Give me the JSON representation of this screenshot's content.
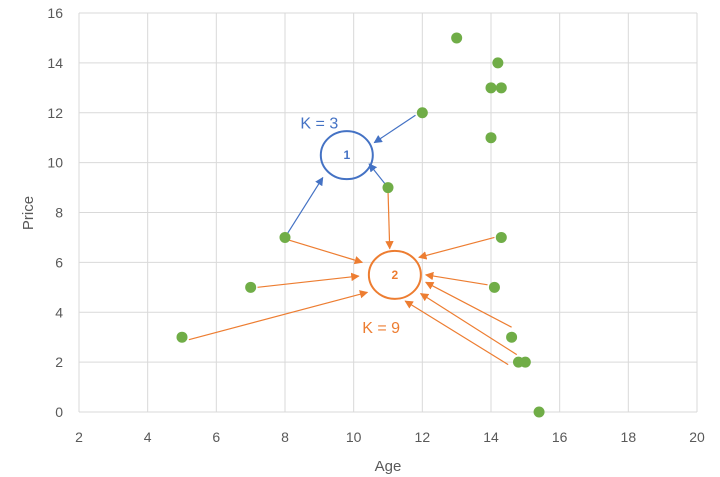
{
  "chart_data": {
    "type": "scatter",
    "xlabel": "Age",
    "ylabel": "Price",
    "xlim": [
      2,
      20
    ],
    "ylim": [
      0,
      16
    ],
    "xticks": [
      2,
      4,
      6,
      8,
      10,
      12,
      14,
      16,
      18,
      20
    ],
    "yticks": [
      0,
      2,
      4,
      6,
      8,
      10,
      12,
      14,
      16
    ],
    "grid": true,
    "points": [
      {
        "x": 5,
        "y": 3
      },
      {
        "x": 7,
        "y": 5
      },
      {
        "x": 8,
        "y": 7
      },
      {
        "x": 11,
        "y": 9
      },
      {
        "x": 12,
        "y": 12
      },
      {
        "x": 13,
        "y": 15
      },
      {
        "x": 14,
        "y": 13
      },
      {
        "x": 14,
        "y": 11
      },
      {
        "x": 14.2,
        "y": 14
      },
      {
        "x": 14.3,
        "y": 13
      },
      {
        "x": 14.3,
        "y": 7
      },
      {
        "x": 14.1,
        "y": 5
      },
      {
        "x": 14.6,
        "y": 3
      },
      {
        "x": 14.8,
        "y": 2
      },
      {
        "x": 15,
        "y": 2
      },
      {
        "x": 15.4,
        "y": 0
      }
    ],
    "clusters": [
      {
        "id": "1",
        "label": "K = 3",
        "color": "#4472C4",
        "center": {
          "x": 9.8,
          "y": 10.3
        },
        "label_at": {
          "x": 9.0,
          "y": 11.6
        },
        "arrows": [
          {
            "from": {
              "x": 8,
              "y": 7
            },
            "to": {
              "x": 9.1,
              "y": 9.4
            }
          },
          {
            "from": {
              "x": 11,
              "y": 9
            },
            "to": {
              "x": 10.45,
              "y": 9.95
            }
          },
          {
            "from": {
              "x": 11.8,
              "y": 11.9
            },
            "to": {
              "x": 10.6,
              "y": 10.8
            }
          }
        ]
      },
      {
        "id": "2",
        "label": "K = 9",
        "color": "#ED7D31",
        "center": {
          "x": 11.2,
          "y": 5.5
        },
        "label_at": {
          "x": 10.8,
          "y": 3.4
        },
        "arrows": [
          {
            "from": {
              "x": 11,
              "y": 8.9
            },
            "to": {
              "x": 11.05,
              "y": 6.55
            }
          },
          {
            "from": {
              "x": 8.1,
              "y": 6.9
            },
            "to": {
              "x": 10.25,
              "y": 6.0
            }
          },
          {
            "from": {
              "x": 7.2,
              "y": 5.0
            },
            "to": {
              "x": 10.15,
              "y": 5.45
            }
          },
          {
            "from": {
              "x": 5.2,
              "y": 2.9
            },
            "to": {
              "x": 10.4,
              "y": 4.8
            }
          },
          {
            "from": {
              "x": 14.1,
              "y": 7.0
            },
            "to": {
              "x": 11.9,
              "y": 6.2
            }
          },
          {
            "from": {
              "x": 13.9,
              "y": 5.1
            },
            "to": {
              "x": 12.1,
              "y": 5.5
            }
          },
          {
            "from": {
              "x": 14.6,
              "y": 3.4
            },
            "to": {
              "x": 12.1,
              "y": 5.2
            }
          },
          {
            "from": {
              "x": 14.75,
              "y": 2.3
            },
            "to": {
              "x": 11.95,
              "y": 4.75
            }
          },
          {
            "from": {
              "x": 14.5,
              "y": 1.9
            },
            "to": {
              "x": 11.5,
              "y": 4.45
            }
          }
        ]
      }
    ]
  },
  "colors": {
    "point": "#70AD47",
    "grid": "#D9D9D9",
    "tick_text": "#595959"
  }
}
